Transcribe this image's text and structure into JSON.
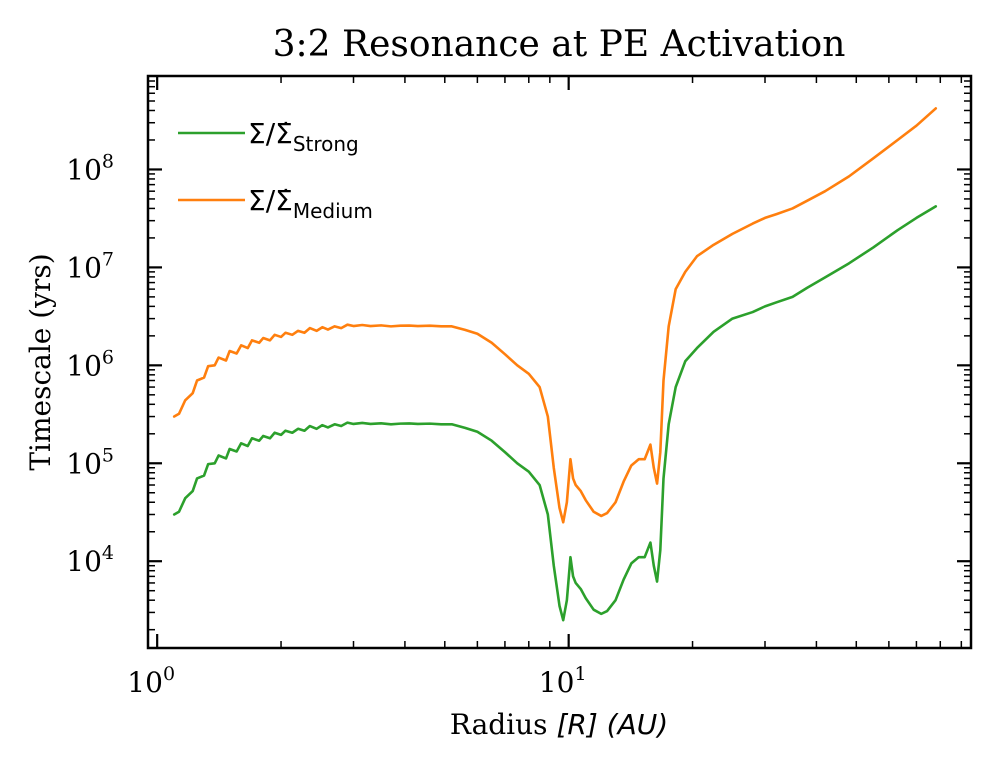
{
  "chart_data": {
    "type": "line",
    "title": "3:2 Resonance at PE Activation",
    "xlabel": "Radius [R] (AU)",
    "xlabel_plain": "Radius ",
    "xlabel_math": "[R] (AU)",
    "ylabel": "Timescale (yrs)",
    "xscale": "log",
    "yscale": "log",
    "xlim": [
      0.95,
      95
    ],
    "ylim": [
      1300,
      900000000
    ],
    "grid": false,
    "legend_position": "top-left",
    "x_ticks": [
      {
        "value": 1,
        "base": "10",
        "exp": "0"
      },
      {
        "value": 10,
        "base": "10",
        "exp": "1"
      }
    ],
    "y_ticks": [
      {
        "value": 10000,
        "base": "10",
        "exp": "4"
      },
      {
        "value": 100000,
        "base": "10",
        "exp": "5"
      },
      {
        "value": 1000000,
        "base": "10",
        "exp": "6"
      },
      {
        "value": 10000000,
        "base": "10",
        "exp": "7"
      },
      {
        "value": 100000000,
        "base": "10",
        "exp": "8"
      }
    ],
    "series": [
      {
        "name": "Σ/Σ̇ Strong",
        "legend_main": "Σ/Σ̇",
        "legend_sub": "Strong",
        "color": "#2ca02c",
        "x": [
          1.1,
          1.13,
          1.17,
          1.22,
          1.25,
          1.3,
          1.33,
          1.38,
          1.41,
          1.47,
          1.5,
          1.56,
          1.6,
          1.66,
          1.7,
          1.77,
          1.81,
          1.88,
          1.93,
          2.0,
          2.05,
          2.13,
          2.2,
          2.28,
          2.35,
          2.44,
          2.52,
          2.6,
          2.7,
          2.8,
          2.9,
          3.0,
          3.15,
          3.3,
          3.5,
          3.7,
          3.9,
          4.1,
          4.3,
          4.6,
          4.9,
          5.2,
          5.6,
          6.0,
          6.5,
          7.0,
          7.5,
          8.0,
          8.5,
          8.9,
          9.2,
          9.5,
          9.7,
          9.9,
          10.1,
          10.25,
          10.4,
          10.7,
          11.0,
          11.5,
          12.0,
          12.4,
          13.0,
          13.6,
          14.2,
          14.8,
          15.3,
          15.8,
          16.1,
          16.4,
          16.7,
          17.0,
          17.5,
          18.2,
          19.2,
          20.5,
          22.5,
          25.0,
          28.0,
          30.0,
          32.0,
          35.0,
          38.0,
          42.0,
          48.0,
          55.0,
          63.0,
          70.0,
          78.0
        ],
        "y": [
          30000,
          32000,
          44000,
          52000,
          70000,
          75000,
          98000,
          100000,
          120000,
          112000,
          140000,
          132000,
          160000,
          150000,
          180000,
          170000,
          190000,
          180000,
          205000,
          195000,
          215000,
          205000,
          225000,
          215000,
          240000,
          225000,
          245000,
          232000,
          250000,
          240000,
          260000,
          252000,
          258000,
          252000,
          256000,
          250000,
          254000,
          255000,
          252000,
          254000,
          250000,
          250000,
          230000,
          210000,
          170000,
          130000,
          100000,
          82000,
          60000,
          30000,
          9000,
          3500,
          2500,
          4000,
          11000,
          7000,
          6000,
          5200,
          4200,
          3200,
          2900,
          3100,
          4000,
          6500,
          9500,
          11000,
          11000,
          15500,
          9000,
          6200,
          13000,
          70000,
          250000,
          600000,
          1100000,
          1500000,
          2200000,
          3000000,
          3500000,
          4000000,
          4400000,
          5000000,
          6200000,
          7900000,
          11000000,
          16000000,
          24000000,
          32000000,
          42000000
        ]
      },
      {
        "name": "Σ/Σ̇ Medium",
        "legend_main": "Σ/Σ̇",
        "legend_sub": "Medium",
        "color": "#ff7f0e",
        "x": [
          1.1,
          1.13,
          1.17,
          1.22,
          1.25,
          1.3,
          1.33,
          1.38,
          1.41,
          1.47,
          1.5,
          1.56,
          1.6,
          1.66,
          1.7,
          1.77,
          1.81,
          1.88,
          1.93,
          2.0,
          2.05,
          2.13,
          2.2,
          2.28,
          2.35,
          2.44,
          2.52,
          2.6,
          2.7,
          2.8,
          2.9,
          3.0,
          3.15,
          3.3,
          3.5,
          3.7,
          3.9,
          4.1,
          4.3,
          4.6,
          4.9,
          5.2,
          5.6,
          6.0,
          6.5,
          7.0,
          7.5,
          8.0,
          8.5,
          8.9,
          9.2,
          9.5,
          9.7,
          9.9,
          10.1,
          10.25,
          10.4,
          10.7,
          11.0,
          11.5,
          12.0,
          12.4,
          13.0,
          13.6,
          14.2,
          14.8,
          15.3,
          15.8,
          16.1,
          16.4,
          16.7,
          17.0,
          17.5,
          18.2,
          19.2,
          20.5,
          22.5,
          25.0,
          28.0,
          30.0,
          32.0,
          35.0,
          38.0,
          42.0,
          48.0,
          55.0,
          63.0,
          70.0,
          78.0
        ],
        "y": [
          300000,
          320000,
          440000,
          520000,
          700000,
          750000,
          980000,
          1000000,
          1200000,
          1120000,
          1400000,
          1320000,
          1600000,
          1500000,
          1800000,
          1700000,
          1900000,
          1800000,
          2050000,
          1950000,
          2150000,
          2050000,
          2250000,
          2150000,
          2400000,
          2250000,
          2450000,
          2320000,
          2500000,
          2400000,
          2600000,
          2520000,
          2580000,
          2520000,
          2560000,
          2500000,
          2540000,
          2550000,
          2520000,
          2540000,
          2500000,
          2500000,
          2300000,
          2100000,
          1700000,
          1300000,
          1000000,
          820000,
          600000,
          300000,
          90000,
          35000,
          25000,
          40000,
          110000,
          70000,
          60000,
          52000,
          42000,
          32000,
          29000,
          31000,
          40000,
          65000,
          95000,
          110000,
          110000,
          155000,
          90000,
          62000,
          130000,
          700000,
          2500000,
          6000000,
          9000000,
          13000000,
          17000000,
          22000000,
          28000000,
          32000000,
          35000000,
          40000000,
          48000000,
          60000000,
          85000000,
          130000000,
          200000000,
          280000000,
          420000000
        ]
      }
    ]
  }
}
